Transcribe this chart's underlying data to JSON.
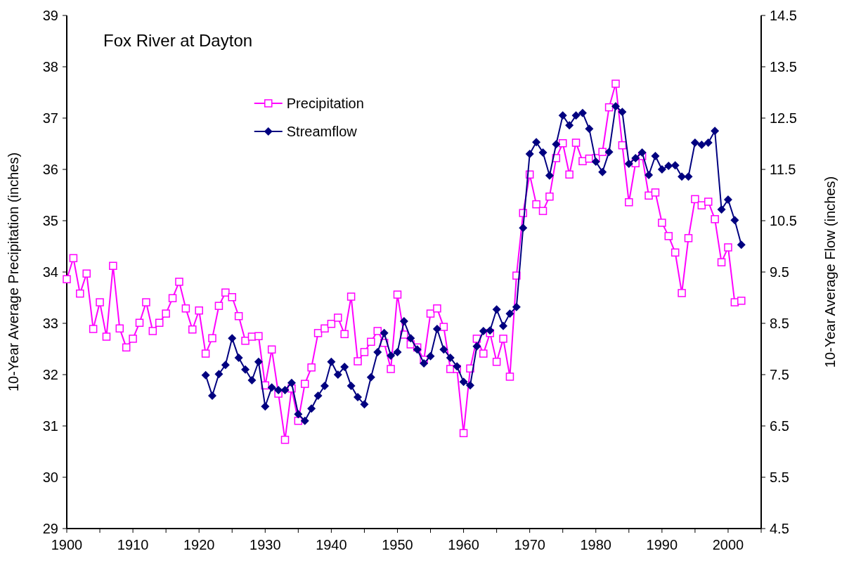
{
  "chart_data": {
    "type": "line",
    "title": "Fox River at Dayton",
    "ylabel": "10-Year Average Precipitation (inches)",
    "y2label": "10-Year Average Flow (inches)",
    "xlim": [
      1900,
      2005
    ],
    "xticks": [
      1900,
      {
        "value": 1905,
        "label": null
      },
      1910,
      {
        "value": 1915,
        "label": null
      },
      1920,
      {
        "value": 1925,
        "label": null
      },
      1930,
      {
        "value": 1935,
        "label": null
      },
      1940,
      {
        "value": 1945,
        "label": null
      },
      1950,
      {
        "value": 1955,
        "label": null
      },
      1960,
      {
        "value": 1965,
        "label": null
      },
      1970,
      {
        "value": 1975,
        "label": null
      },
      1980,
      {
        "value": 1985,
        "label": null
      },
      1990,
      {
        "value": 1995,
        "label": null
      },
      2000,
      {
        "value": 2005,
        "label": null
      }
    ],
    "ylim": [
      29,
      39
    ],
    "yticks": [
      29,
      30,
      31,
      32,
      33,
      34,
      35,
      36,
      37,
      38,
      39
    ],
    "y2lim": [
      4.5,
      14.5
    ],
    "y2ticks": [
      4.5,
      5.5,
      6.5,
      7.5,
      8.5,
      9.5,
      10.5,
      11.5,
      12.5,
      13.5,
      14.5
    ],
    "grid": false,
    "legend": "top",
    "line_style": "solid",
    "series": [
      {
        "name": "Precipitation",
        "color": "#ff00ff",
        "marker": "square",
        "x": [
          1900,
          1901,
          1902,
          1903,
          1904,
          1905,
          1906,
          1907,
          1908,
          1909,
          1910,
          1911,
          1912,
          1913,
          1914,
          1915,
          1916,
          1917,
          1918,
          1919,
          1920,
          1921,
          1922,
          1923,
          1924,
          1925,
          1926,
          1927,
          1928,
          1929,
          1930,
          1931,
          1932,
          1933,
          1934,
          1935,
          1936,
          1937,
          1938,
          1939,
          1940,
          1941,
          1942,
          1943,
          1944,
          1945,
          1946,
          1947,
          1948,
          1949,
          1950,
          1951,
          1952,
          1953,
          1954,
          1955,
          1956,
          1957,
          1958,
          1959,
          1960,
          1961,
          1962,
          1963,
          1964,
          1965,
          1966,
          1967,
          1968,
          1969,
          1970,
          1971,
          1972,
          1973,
          1974,
          1975,
          1976,
          1977,
          1978,
          1979,
          1980,
          1981,
          1982,
          1983,
          1984,
          1985,
          1986,
          1987,
          1988,
          1989,
          1990,
          1991,
          1992,
          1993,
          1994,
          1995,
          1996,
          1997,
          1998,
          1999,
          2000,
          2001,
          2002
        ],
        "values": [
          33.86,
          34.27,
          33.58,
          33.97,
          32.89,
          33.41,
          32.74,
          34.12,
          32.9,
          32.53,
          32.7,
          33.01,
          33.41,
          32.85,
          33.01,
          33.19,
          33.49,
          33.81,
          33.29,
          32.88,
          33.25,
          32.41,
          32.71,
          33.34,
          33.6,
          33.51,
          33.14,
          32.66,
          32.74,
          32.75,
          31.79,
          32.49,
          31.63,
          30.73,
          31.73,
          31.1,
          31.82,
          32.14,
          32.81,
          32.9,
          32.99,
          33.11,
          32.79,
          33.52,
          32.26,
          32.44,
          32.64,
          32.85,
          32.62,
          32.11,
          33.56,
          32.78,
          32.59,
          32.53,
          32.29,
          33.19,
          33.29,
          32.93,
          32.11,
          32.11,
          30.86,
          32.12,
          32.7,
          32.41,
          32.81,
          32.25,
          32.7,
          31.96,
          33.93,
          35.15,
          35.9,
          35.32,
          35.19,
          35.47,
          36.22,
          36.51,
          35.9,
          36.52,
          36.16,
          36.21,
          36.22,
          36.34,
          37.21,
          37.67,
          36.47,
          35.36,
          36.12,
          36.26,
          35.49,
          35.55,
          34.96,
          34.7,
          34.38,
          33.59,
          34.66,
          35.42,
          35.3,
          35.37,
          35.03,
          34.19,
          34.48,
          33.41,
          33.44
        ]
      },
      {
        "name": "Streamflow",
        "color": "#000080",
        "marker": "diamond",
        "axis": "y2",
        "x": [
          1921,
          1922,
          1923,
          1924,
          1925,
          1926,
          1927,
          1928,
          1929,
          1930,
          1931,
          1932,
          1933,
          1934,
          1935,
          1936,
          1937,
          1938,
          1939,
          1940,
          1941,
          1942,
          1943,
          1944,
          1945,
          1946,
          1947,
          1948,
          1949,
          1950,
          1951,
          1952,
          1953,
          1954,
          1955,
          1956,
          1957,
          1958,
          1959,
          1960,
          1961,
          1962,
          1963,
          1964,
          1965,
          1966,
          1967,
          1968,
          1969,
          1970,
          1971,
          1972,
          1973,
          1974,
          1975,
          1976,
          1977,
          1978,
          1979,
          1980,
          1981,
          1982,
          1983,
          1984,
          1985,
          1986,
          1987,
          1988,
          1989,
          1990,
          1991,
          1992,
          1993,
          1994,
          1995,
          1996,
          1997,
          1998,
          1999,
          2000,
          2001,
          2002
        ],
        "values": [
          7.49,
          7.09,
          7.51,
          7.69,
          8.21,
          7.83,
          7.6,
          7.39,
          7.75,
          6.88,
          7.25,
          7.2,
          7.2,
          7.34,
          6.73,
          6.6,
          6.84,
          7.09,
          7.28,
          7.75,
          7.5,
          7.65,
          7.28,
          7.06,
          6.92,
          7.45,
          7.94,
          8.31,
          7.87,
          7.94,
          8.54,
          8.21,
          7.99,
          7.72,
          7.86,
          8.39,
          7.99,
          7.83,
          7.66,
          7.36,
          7.29,
          8.05,
          8.35,
          8.36,
          8.77,
          8.45,
          8.69,
          8.82,
          10.36,
          11.8,
          12.03,
          11.83,
          11.38,
          11.99,
          12.55,
          12.36,
          12.55,
          12.6,
          12.29,
          11.65,
          11.45,
          11.84,
          12.73,
          12.62,
          11.61,
          11.72,
          11.83,
          11.39,
          11.76,
          11.5,
          11.57,
          11.58,
          11.36,
          11.36,
          12.02,
          11.98,
          12.02,
          12.25,
          10.72,
          10.91,
          10.51,
          10.03
        ]
      }
    ]
  }
}
